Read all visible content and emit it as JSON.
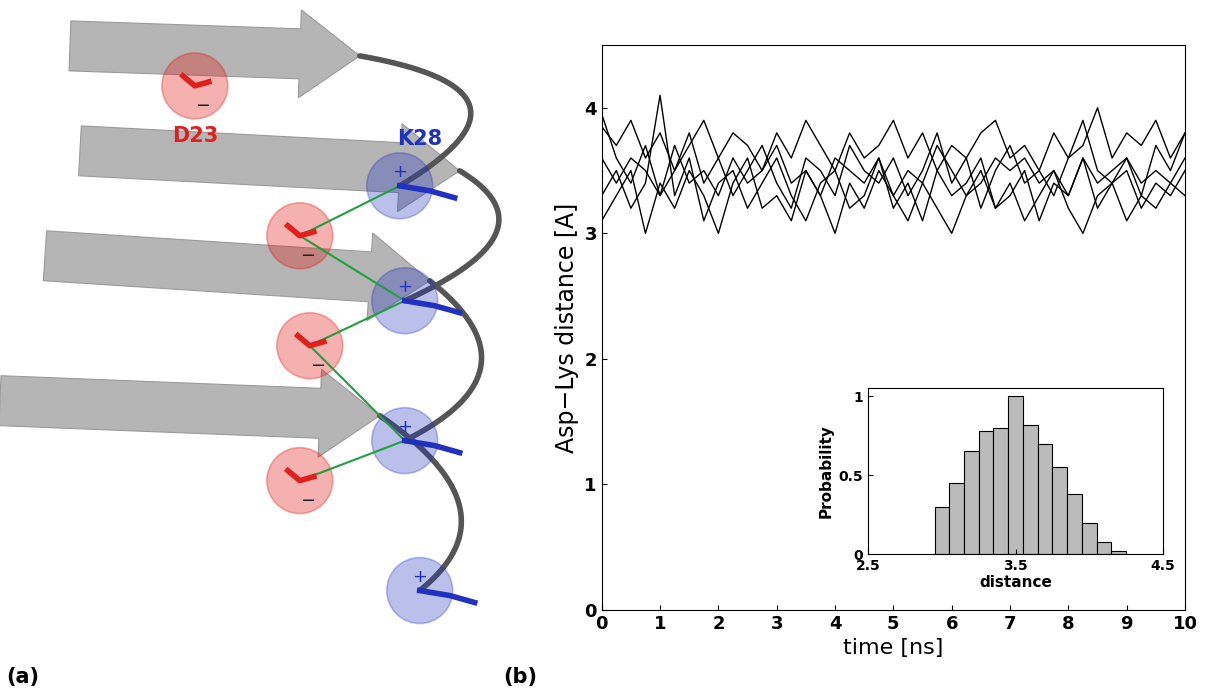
{
  "diagram": {
    "residues": [
      {
        "text": "D23",
        "charge": "−",
        "color": "#e0201b"
      },
      {
        "text": "K28",
        "charge": "+",
        "color": "#2030c0"
      }
    ]
  },
  "panel_labels": [
    "(a)",
    "(b)"
  ],
  "chart_data": {
    "type": "line",
    "x_label": "time [ns]",
    "y_label": "Asp−Lys distance [A]",
    "x": [
      0,
      0.25,
      0.5,
      0.75,
      1,
      1.25,
      1.5,
      1.75,
      2,
      2.25,
      2.5,
      2.75,
      3,
      3.25,
      3.5,
      3.75,
      4,
      4.25,
      4.5,
      4.75,
      5,
      5.25,
      5.5,
      5.75,
      6,
      6.25,
      6.5,
      6.75,
      7,
      7.25,
      7.5,
      7.75,
      8,
      8.25,
      8.5,
      8.75,
      9,
      9.25,
      9.5,
      9.75,
      10
    ],
    "series": [
      {
        "color": "#000000",
        "values": [
          3.95,
          3.6,
          3.4,
          3.7,
          3.3,
          3.5,
          3.8,
          3.4,
          3.6,
          3.3,
          3.5,
          3.7,
          3.4,
          3.2,
          3.6,
          3.5,
          3.3,
          3.7,
          3.5,
          3.4,
          3.6,
          3.3,
          3.5,
          3.8,
          3.4,
          3.6,
          3.2,
          3.5,
          3.7,
          3.4,
          3.5,
          3.3,
          3.6,
          3.9,
          3.5,
          3.4,
          3.6,
          3.3,
          3.7,
          3.5,
          3.8
        ]
      },
      {
        "color": "#000000",
        "values": [
          3.3,
          3.5,
          3.2,
          3.4,
          4.1,
          3.3,
          3.6,
          3.1,
          3.4,
          3.5,
          3.2,
          3.4,
          3.6,
          3.3,
          3.1,
          3.4,
          3.5,
          3.2,
          3.3,
          3.6,
          3.2,
          3.4,
          3.1,
          3.5,
          3.3,
          3.4,
          3.6,
          3.2,
          3.3,
          3.5,
          3.1,
          3.4,
          3.3,
          3.6,
          3.2,
          3.4,
          3.5,
          3.2,
          3.4,
          3.3,
          3.5
        ]
      },
      {
        "color": "#000000",
        "values": [
          3.1,
          3.3,
          3.5,
          3.0,
          3.4,
          3.2,
          3.5,
          3.3,
          3.0,
          3.4,
          3.6,
          3.2,
          3.3,
          3.1,
          3.5,
          3.3,
          3.0,
          3.4,
          3.2,
          3.5,
          3.3,
          3.1,
          3.4,
          3.2,
          3.0,
          3.3,
          3.5,
          3.2,
          3.4,
          3.1,
          3.3,
          3.5,
          3.2,
          3.0,
          3.3,
          3.4,
          3.1,
          3.3,
          3.2,
          3.4,
          3.3
        ]
      },
      {
        "color": "#000000",
        "values": [
          3.85,
          3.7,
          3.9,
          3.6,
          3.8,
          3.5,
          3.7,
          3.9,
          3.6,
          3.8,
          3.7,
          3.5,
          3.8,
          3.6,
          3.9,
          3.7,
          3.5,
          3.8,
          3.6,
          3.7,
          3.9,
          3.6,
          3.8,
          3.5,
          3.7,
          3.6,
          3.8,
          3.9,
          3.6,
          3.7,
          3.5,
          3.8,
          3.6,
          3.7,
          4.0,
          3.6,
          3.8,
          3.7,
          3.9,
          3.6,
          3.8
        ]
      },
      {
        "color": "#000000",
        "values": [
          3.6,
          3.4,
          3.6,
          3.5,
          3.3,
          3.7,
          3.4,
          3.5,
          3.3,
          3.6,
          3.4,
          3.5,
          3.7,
          3.4,
          3.5,
          3.3,
          3.6,
          3.5,
          3.4,
          3.6,
          3.3,
          3.5,
          3.4,
          3.7,
          3.5,
          3.3,
          3.4,
          3.6,
          3.5,
          3.6,
          3.4,
          3.5,
          3.3,
          3.6,
          3.4,
          3.5,
          3.6,
          3.4,
          3.5,
          3.4,
          3.6
        ]
      }
    ],
    "xlim": [
      0,
      10
    ],
    "xticks": [
      0,
      1,
      2,
      3,
      4,
      5,
      6,
      7,
      8,
      9,
      10
    ],
    "ylim": [
      0,
      4.5
    ],
    "yticks": [
      0,
      1,
      2,
      3,
      4
    ],
    "inset": {
      "type": "histogram",
      "x_label": "distance",
      "y_label": "Probability",
      "color": "#bbbbbb",
      "bins": [
        2.95,
        3.05,
        3.15,
        3.25,
        3.35,
        3.45,
        3.55,
        3.65,
        3.75,
        3.85,
        3.95,
        4.05,
        4.15,
        4.25
      ],
      "counts": [
        0.3,
        0.45,
        0.65,
        0.78,
        0.8,
        1.0,
        0.82,
        0.7,
        0.55,
        0.38,
        0.2,
        0.08,
        0.02
      ],
      "xlim": [
        2.5,
        4.5
      ],
      "xticks": [
        2.5,
        3.5,
        4.5
      ],
      "ylim": [
        0,
        1.05
      ],
      "yticks": [
        0,
        0.5,
        1
      ]
    }
  }
}
